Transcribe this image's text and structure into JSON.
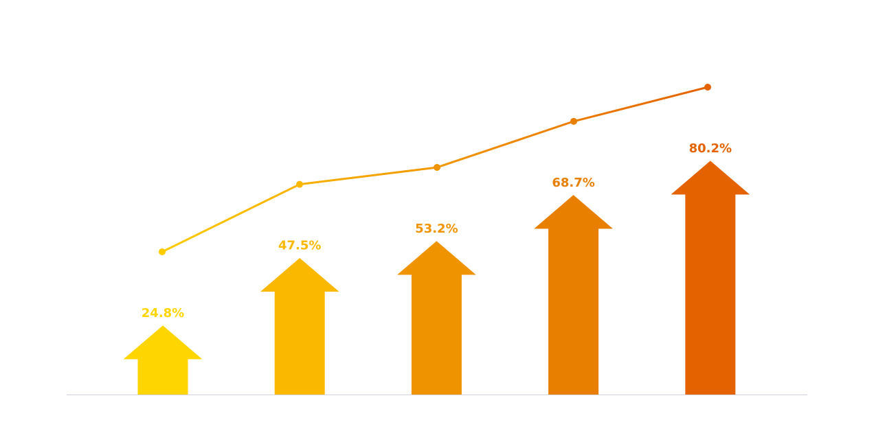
{
  "chart_data": {
    "type": "bar",
    "bar_shape": "upward arrow",
    "overlay": "line connecting trend points above each arrow",
    "values": [
      24.8,
      47.5,
      53.2,
      68.7,
      80.2
    ],
    "labels": [
      "24.8%",
      "47.5%",
      "53.2%",
      "68.7%",
      "80.2%"
    ],
    "unit": "%",
    "ylim": [
      0,
      100
    ],
    "grid": false,
    "legend": "none",
    "title": "",
    "xlabel": "",
    "ylabel": "",
    "colors": [
      "#FFD500",
      "#FBB800",
      "#F09300",
      "#E87F00",
      "#E56200"
    ],
    "baseline_color": "#D0D0DA"
  }
}
